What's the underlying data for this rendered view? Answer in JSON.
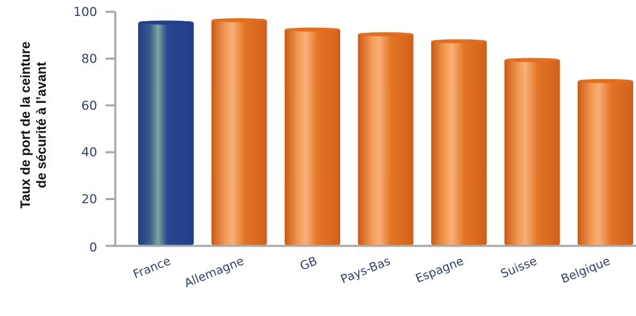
{
  "chart_data": {
    "type": "bar",
    "title": "",
    "xlabel": "",
    "ylabel": [
      "Taux de port de la ceinture",
      "de sécurité à l’avant"
    ],
    "categories": [
      "France",
      "Allemagne",
      "GB",
      "Pays-Bas",
      "Espagne",
      "Suisse",
      "Belgique"
    ],
    "values": [
      96,
      97,
      93,
      91,
      88,
      80,
      71
    ],
    "ylim": [
      0,
      100
    ],
    "yticks": [
      0,
      20,
      40,
      60,
      80,
      100
    ],
    "grid": false,
    "colors": {
      "highlight": "#253f8a",
      "default": "#e07020",
      "axis": "#a8a8a8",
      "text": "#2f3f6a"
    },
    "highlight_index": 0
  }
}
